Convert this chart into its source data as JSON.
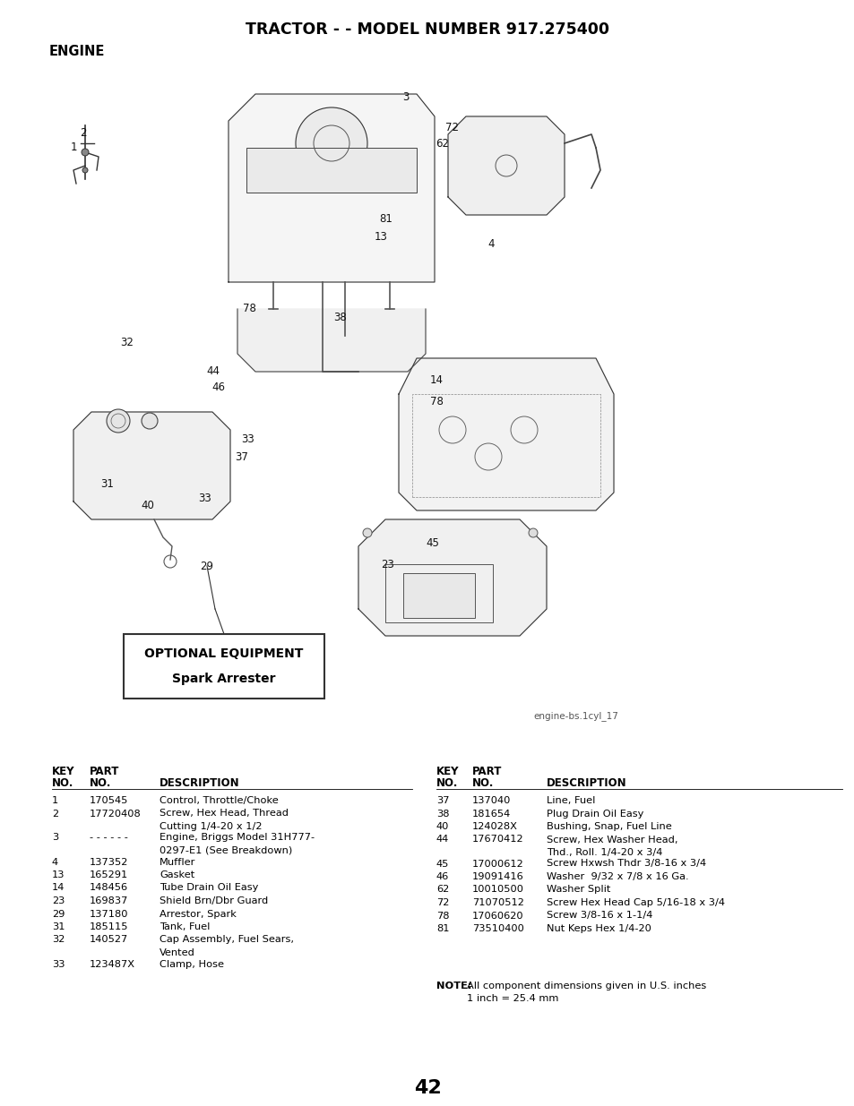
{
  "title": "TRACTOR - - MODEL NUMBER 917.275400",
  "section": "ENGINE",
  "image_label": "engine-bs.1cyl_17",
  "optional_equipment_title": "OPTIONAL EQUIPMENT",
  "optional_equipment_subtitle": "Spark Arrester",
  "page_number": "42",
  "bg_color": "#ffffff",
  "text_color": "#000000",
  "parts_left": [
    [
      "1",
      "170545",
      "Control, Throttle/Choke",
      ""
    ],
    [
      "2",
      "17720408",
      "Screw, Hex Head, Thread",
      "Cutting 1/4-20 x 1/2"
    ],
    [
      "3",
      "- - - - - -",
      "Engine, Briggs Model 31H777-",
      "0297-E1 (See Breakdown)"
    ],
    [
      "4",
      "137352",
      "Muffler",
      ""
    ],
    [
      "13",
      "165291",
      "Gasket",
      ""
    ],
    [
      "14",
      "148456",
      "Tube Drain Oil Easy",
      ""
    ],
    [
      "23",
      "169837",
      "Shield Brn/Dbr Guard",
      ""
    ],
    [
      "29",
      "137180",
      "Arrestor, Spark",
      ""
    ],
    [
      "31",
      "185115",
      "Tank, Fuel",
      ""
    ],
    [
      "32",
      "140527",
      "Cap Assembly, Fuel Sears,",
      "Vented"
    ],
    [
      "33",
      "123487X",
      "Clamp, Hose",
      ""
    ]
  ],
  "parts_right": [
    [
      "37",
      "137040",
      "Line, Fuel",
      ""
    ],
    [
      "38",
      "181654",
      "Plug Drain Oil Easy",
      ""
    ],
    [
      "40",
      "124028X",
      "Bushing, Snap, Fuel Line",
      ""
    ],
    [
      "44",
      "17670412",
      "Screw, Hex Washer Head,",
      "Thd., Roll. 1/4-20 x 3/4"
    ],
    [
      "45",
      "17000612",
      "Screw Hxwsh Thdr 3/8-16 x 3/4",
      ""
    ],
    [
      "46",
      "19091416",
      "Washer  9/32 x 7/8 x 16 Ga.",
      ""
    ],
    [
      "62",
      "10010500",
      "Washer Split",
      ""
    ],
    [
      "72",
      "71070512",
      "Screw Hex Head Cap 5/16-18 x 3/4",
      ""
    ],
    [
      "78",
      "17060620",
      "Screw 3/8-16 x 1-1/4",
      ""
    ],
    [
      "81",
      "73510400",
      "Nut Keps Hex 1/4-20",
      ""
    ]
  ],
  "callouts": [
    [
      93,
      148,
      "2"
    ],
    [
      82,
      165,
      "1"
    ],
    [
      453,
      108,
      "3"
    ],
    [
      505,
      143,
      "72"
    ],
    [
      494,
      161,
      "62"
    ],
    [
      431,
      244,
      "81"
    ],
    [
      425,
      265,
      "13"
    ],
    [
      548,
      272,
      "4"
    ],
    [
      278,
      345,
      "78"
    ],
    [
      380,
      355,
      "38"
    ],
    [
      487,
      425,
      "14"
    ],
    [
      487,
      448,
      "78"
    ],
    [
      142,
      382,
      "32"
    ],
    [
      238,
      414,
      "44"
    ],
    [
      244,
      432,
      "46"
    ],
    [
      277,
      490,
      "33"
    ],
    [
      270,
      510,
      "37"
    ],
    [
      120,
      540,
      "31"
    ],
    [
      165,
      565,
      "40"
    ],
    [
      229,
      556,
      "33"
    ],
    [
      231,
      632,
      "29"
    ],
    [
      483,
      607,
      "45"
    ],
    [
      433,
      630,
      "23"
    ]
  ]
}
